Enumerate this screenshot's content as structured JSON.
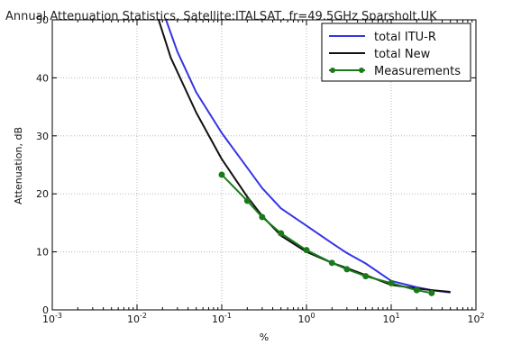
{
  "chart_data": {
    "type": "line",
    "title": "Annual Attenuation Statistics, Satellite:ITALSAT, fr=49.5GHz Sparsholt,UK",
    "xlabel": "%",
    "ylabel": "Attenuation, dB",
    "xscale": "log",
    "xlim": [
      0.001,
      100
    ],
    "ylim": [
      0,
      50
    ],
    "x_ticks": [
      0.001,
      0.01,
      0.1,
      1,
      10,
      100
    ],
    "x_tick_labels": [
      {
        "base": "10",
        "exp": "-3"
      },
      {
        "base": "10",
        "exp": "-2"
      },
      {
        "base": "10",
        "exp": "-1"
      },
      {
        "base": "10",
        "exp": "0"
      },
      {
        "base": "10",
        "exp": "1"
      },
      {
        "base": "10",
        "exp": "2"
      }
    ],
    "y_ticks": [
      0,
      10,
      20,
      30,
      40,
      50
    ],
    "y_tick_labels": [
      "0",
      "10",
      "20",
      "30",
      "40",
      "50"
    ],
    "grid": true,
    "legend_position": "top-right",
    "series": [
      {
        "name": "total ITU-R",
        "color": "#3535e6",
        "marker": "none",
        "x": [
          0.022,
          0.03,
          0.05,
          0.1,
          0.2,
          0.3,
          0.5,
          1,
          2,
          3,
          5,
          10,
          20,
          30,
          50
        ],
        "y": [
          50,
          44.5,
          37.5,
          30.5,
          24.5,
          21.0,
          17.5,
          14.5,
          11.5,
          9.8,
          8.0,
          5.0,
          3.9,
          3.4,
          3.0
        ]
      },
      {
        "name": "total New",
        "color": "#111111",
        "marker": "none",
        "x": [
          0.018,
          0.025,
          0.05,
          0.1,
          0.2,
          0.3,
          0.5,
          1,
          2,
          3,
          5,
          10,
          20,
          30,
          50
        ],
        "y": [
          50,
          43.5,
          34.0,
          26.0,
          19.5,
          16.2,
          12.8,
          10.0,
          8.1,
          7.2,
          6.0,
          4.3,
          3.7,
          3.4,
          3.1
        ]
      },
      {
        "name": "Measurements",
        "color": "#1a7a1a",
        "marker": "circle",
        "x": [
          0.1,
          0.2,
          0.3,
          0.5,
          1,
          2,
          3,
          5,
          10,
          20,
          30
        ],
        "y": [
          23.3,
          18.8,
          16.0,
          13.2,
          10.3,
          8.1,
          7.0,
          5.8,
          4.6,
          3.4,
          2.9
        ]
      }
    ]
  }
}
